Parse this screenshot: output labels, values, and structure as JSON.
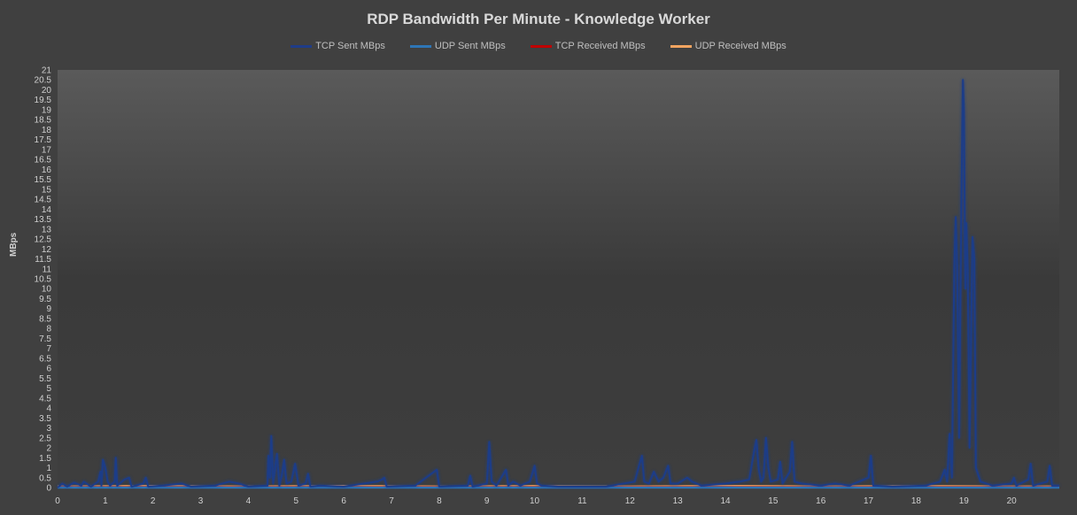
{
  "chart_data": {
    "type": "line",
    "title": "RDP Bandwidth Per Minute - Knowledge Worker",
    "xlabel": "",
    "ylabel": "MBps",
    "xlim": [
      0,
      21
    ],
    "ylim": [
      0,
      21
    ],
    "x_ticks": [
      "0",
      "1",
      "2",
      "3",
      "4",
      "5",
      "6",
      "7",
      "8",
      "9",
      "10",
      "11",
      "12",
      "13",
      "14",
      "15",
      "16",
      "17",
      "18",
      "19",
      "20"
    ],
    "y_ticks": [
      "0",
      "0.5",
      "1",
      "1.5",
      "2",
      "2.5",
      "3",
      "3.5",
      "4",
      "4.5",
      "5",
      "5.5",
      "6",
      "6.5",
      "7",
      "7.5",
      "8",
      "8.5",
      "9",
      "9.5",
      "10",
      "10.5",
      "11",
      "11.5",
      "12",
      "12.5",
      "13",
      "13.5",
      "14",
      "14.5",
      "15",
      "15.5",
      "16",
      "16.5",
      "17",
      "17.5",
      "18",
      "18.5",
      "19",
      "19.5",
      "20",
      "20.5",
      "21"
    ],
    "legend_position": "top",
    "series": [
      {
        "name": "TCP Sent MBps",
        "color": "#1f3c88",
        "points": [
          [
            0,
            0
          ],
          [
            0.1,
            0.2
          ],
          [
            0.2,
            0.05
          ],
          [
            0.35,
            0.25
          ],
          [
            0.5,
            0.1
          ],
          [
            0.55,
            0.3
          ],
          [
            0.7,
            0.05
          ],
          [
            0.85,
            0.3
          ],
          [
            0.9,
            0.8
          ],
          [
            0.92,
            0.1
          ],
          [
            0.95,
            1.4
          ],
          [
            1.0,
            1.0
          ],
          [
            1.05,
            0.3
          ],
          [
            1.1,
            0.1
          ],
          [
            1.2,
            0.3
          ],
          [
            1.22,
            1.5
          ],
          [
            1.25,
            0.1
          ],
          [
            1.4,
            0.4
          ],
          [
            1.5,
            0.5
          ],
          [
            1.55,
            0.05
          ],
          [
            1.8,
            0.2
          ],
          [
            1.85,
            0.5
          ],
          [
            1.9,
            0.05
          ],
          [
            2.2,
            0.1
          ],
          [
            2.6,
            0.2
          ],
          [
            2.8,
            0.05
          ],
          [
            3.3,
            0.1
          ],
          [
            3.6,
            0.3
          ],
          [
            3.8,
            0.2
          ],
          [
            4.0,
            0.05
          ],
          [
            4.4,
            0.1
          ],
          [
            4.42,
            1.6
          ],
          [
            4.45,
            0.5
          ],
          [
            4.48,
            2.6
          ],
          [
            4.52,
            0.2
          ],
          [
            4.6,
            1.7
          ],
          [
            4.65,
            0.1
          ],
          [
            4.7,
            0.6
          ],
          [
            4.75,
            1.4
          ],
          [
            4.8,
            0.2
          ],
          [
            4.9,
            0.3
          ],
          [
            4.98,
            1.2
          ],
          [
            5.05,
            0.1
          ],
          [
            5.2,
            0.2
          ],
          [
            5.25,
            0.7
          ],
          [
            5.3,
            0.05
          ],
          [
            5.5,
            0.1
          ],
          [
            6.0,
            0.05
          ],
          [
            6.7,
            0.3
          ],
          [
            6.8,
            0.4
          ],
          [
            6.85,
            0.5
          ],
          [
            6.9,
            0.05
          ],
          [
            7.5,
            0.1
          ],
          [
            7.95,
            0.9
          ],
          [
            8.0,
            0.05
          ],
          [
            8.6,
            0.1
          ],
          [
            8.65,
            0.6
          ],
          [
            8.7,
            0.05
          ],
          [
            9.0,
            0.2
          ],
          [
            9.05,
            2.3
          ],
          [
            9.1,
            0.3
          ],
          [
            9.2,
            0.1
          ],
          [
            9.4,
            0.9
          ],
          [
            9.45,
            0.1
          ],
          [
            9.55,
            0.3
          ],
          [
            9.7,
            0.1
          ],
          [
            9.9,
            0.3
          ],
          [
            10.0,
            1.1
          ],
          [
            10.05,
            0.2
          ],
          [
            10.15,
            0.1
          ],
          [
            10.5,
            0.05
          ],
          [
            11.5,
            0.05
          ],
          [
            12.1,
            0.3
          ],
          [
            12.2,
            1.2
          ],
          [
            12.25,
            1.6
          ],
          [
            12.3,
            0.3
          ],
          [
            12.4,
            0.2
          ],
          [
            12.5,
            0.8
          ],
          [
            12.6,
            0.3
          ],
          [
            12.7,
            0.5
          ],
          [
            12.8,
            1.1
          ],
          [
            12.85,
            0.2
          ],
          [
            13.0,
            0.2
          ],
          [
            13.2,
            0.5
          ],
          [
            13.3,
            0.3
          ],
          [
            13.5,
            0.1
          ],
          [
            14.0,
            0.2
          ],
          [
            14.3,
            0.3
          ],
          [
            14.5,
            0.4
          ],
          [
            14.6,
            1.8
          ],
          [
            14.65,
            2.4
          ],
          [
            14.7,
            0.9
          ],
          [
            14.75,
            0.3
          ],
          [
            14.8,
            0.5
          ],
          [
            14.85,
            2.5
          ],
          [
            14.9,
            1.0
          ],
          [
            14.95,
            0.3
          ],
          [
            15.1,
            0.4
          ],
          [
            15.15,
            1.3
          ],
          [
            15.2,
            0.2
          ],
          [
            15.35,
            0.8
          ],
          [
            15.4,
            2.3
          ],
          [
            15.45,
            0.3
          ],
          [
            15.6,
            0.2
          ],
          [
            16.0,
            0.1
          ],
          [
            16.3,
            0.2
          ],
          [
            16.6,
            0.1
          ],
          [
            17.0,
            0.5
          ],
          [
            17.05,
            1.6
          ],
          [
            17.1,
            0.1
          ],
          [
            17.5,
            0.05
          ],
          [
            18.2,
            0.1
          ],
          [
            18.5,
            0.3
          ],
          [
            18.6,
            0.9
          ],
          [
            18.65,
            0.3
          ],
          [
            18.7,
            2.7
          ],
          [
            18.75,
            0.5
          ],
          [
            18.8,
            11.2
          ],
          [
            18.83,
            13.6
          ],
          [
            18.86,
            11.0
          ],
          [
            18.9,
            2.5
          ],
          [
            18.95,
            15.0
          ],
          [
            18.98,
            20.5
          ],
          [
            19.0,
            19.0
          ],
          [
            19.03,
            10.0
          ],
          [
            19.05,
            13.3
          ],
          [
            19.08,
            11.0
          ],
          [
            19.12,
            2.0
          ],
          [
            19.18,
            12.6
          ],
          [
            19.22,
            11.5
          ],
          [
            19.25,
            1.0
          ],
          [
            19.35,
            0.3
          ],
          [
            19.6,
            0.1
          ],
          [
            20.0,
            0.2
          ],
          [
            20.05,
            0.5
          ],
          [
            20.1,
            0.1
          ],
          [
            20.35,
            0.4
          ],
          [
            20.4,
            1.2
          ],
          [
            20.45,
            0.1
          ],
          [
            20.75,
            0.3
          ],
          [
            20.8,
            1.1
          ],
          [
            20.85,
            0.1
          ],
          [
            21,
            0.1
          ]
        ]
      },
      {
        "name": "UDP Sent MBps",
        "color": "#2e75b6",
        "points": [
          [
            0,
            0
          ],
          [
            21,
            0
          ]
        ]
      },
      {
        "name": "TCP Received MBps",
        "color": "#c00000",
        "points": [
          [
            0,
            0.02
          ],
          [
            21,
            0.02
          ]
        ]
      },
      {
        "name": "UDP Received MBps",
        "color": "#f4a460",
        "points": [
          [
            0,
            0.05
          ],
          [
            2,
            0.08
          ],
          [
            4,
            0.05
          ],
          [
            6,
            0.08
          ],
          [
            8,
            0.05
          ],
          [
            10,
            0.07
          ],
          [
            12,
            0.05
          ],
          [
            14,
            0.08
          ],
          [
            16,
            0.05
          ],
          [
            18,
            0.07
          ],
          [
            20,
            0.05
          ],
          [
            21,
            0.05
          ]
        ]
      }
    ]
  }
}
